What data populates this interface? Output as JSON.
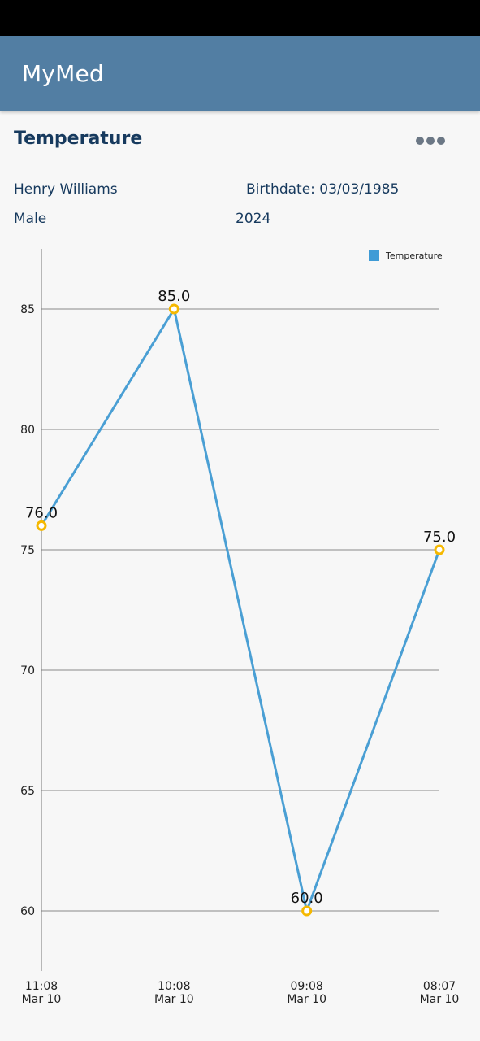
{
  "app": {
    "title": "MyMed"
  },
  "page": {
    "title": "Temperature"
  },
  "patient": {
    "name": "Henry Williams",
    "birthdate_label": "Birthdate: 03/03/1985",
    "sex": "Male",
    "year": "2024"
  },
  "icons": {
    "menu": "more-horizontal-icon"
  },
  "colors": {
    "app_bar": "#527ea3",
    "line": "#4a9fd4",
    "point": "#f5b800",
    "title_text": "#173a5e"
  },
  "chart_data": {
    "type": "line",
    "legend": [
      "Temperature"
    ],
    "legend_position": "top-right",
    "categories": [
      {
        "time": "11:08",
        "date": "Mar 10"
      },
      {
        "time": "10:08",
        "date": "Mar 10"
      },
      {
        "time": "09:08",
        "date": "Mar 10"
      },
      {
        "time": "08:07",
        "date": "Mar 10"
      }
    ],
    "series": [
      {
        "name": "Temperature",
        "values": [
          76.0,
          85.0,
          60.0,
          75.0
        ],
        "labels": [
          "76.0",
          "85.0",
          "60.0",
          "75.0"
        ]
      }
    ],
    "y_ticks": [
      "60",
      "65",
      "70",
      "75",
      "80",
      "85"
    ],
    "ylim": [
      57.5,
      87.5
    ],
    "grid": true
  }
}
